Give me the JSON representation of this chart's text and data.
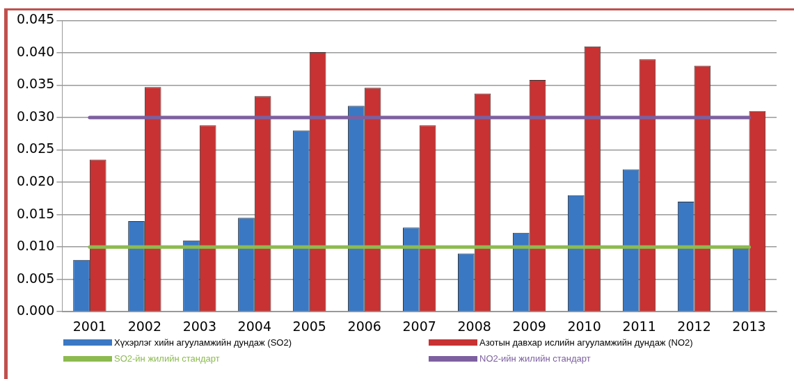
{
  "chart_data": {
    "type": "bar",
    "categories": [
      "2001",
      "2002",
      "2003",
      "2004",
      "2005",
      "2006",
      "2007",
      "2008",
      "2009",
      "2010",
      "2011",
      "2012",
      "2013"
    ],
    "series": [
      {
        "name": "Хүхэрлэг хийн агууламжийн дундаж (SO2)",
        "color": "#3a78c4",
        "values": [
          0.008,
          0.014,
          0.011,
          0.0145,
          0.028,
          0.0318,
          0.013,
          0.009,
          0.0122,
          0.018,
          0.022,
          0.017,
          0.0098
        ]
      },
      {
        "name": "Азотын давхар ислийн агууламжийн дундаж (NO2)",
        "color": "#c83232",
        "values": [
          0.0235,
          0.0347,
          0.0288,
          0.0333,
          0.0401,
          0.0346,
          0.0288,
          0.0337,
          0.0358,
          0.041,
          0.039,
          0.038,
          0.031
        ]
      },
      {
        "name": "SO2-йн жилийн стандарт",
        "type": "line",
        "color": "#8cbb4f",
        "values": [
          0.01,
          0.01,
          0.01,
          0.01,
          0.01,
          0.01,
          0.01,
          0.01,
          0.01,
          0.01,
          0.01,
          0.01,
          0.01
        ]
      },
      {
        "name": "NO2-ийн жилийн стандарт",
        "type": "line",
        "color": "#7d60a0",
        "values": [
          0.03,
          0.03,
          0.03,
          0.03,
          0.03,
          0.03,
          0.03,
          0.03,
          0.03,
          0.03,
          0.03,
          0.03,
          0.03
        ]
      }
    ],
    "ylim": [
      0,
      0.045
    ],
    "yticks": [
      {
        "value": 0,
        "label": "0.000"
      },
      {
        "value": 0.005,
        "label": "0.005"
      },
      {
        "value": 0.01,
        "label": "0.010"
      },
      {
        "value": 0.015,
        "label": "0.015"
      },
      {
        "value": 0.02,
        "label": "0.020"
      },
      {
        "value": 0.025,
        "label": "0.025"
      },
      {
        "value": 0.03,
        "label": "0.030"
      },
      {
        "value": 0.035,
        "label": "0.035"
      },
      {
        "value": 0.04,
        "label": "0.040"
      },
      {
        "value": 0.045,
        "label": "0.045"
      }
    ],
    "grid": "y",
    "legend": "bottom",
    "marker": "none"
  }
}
